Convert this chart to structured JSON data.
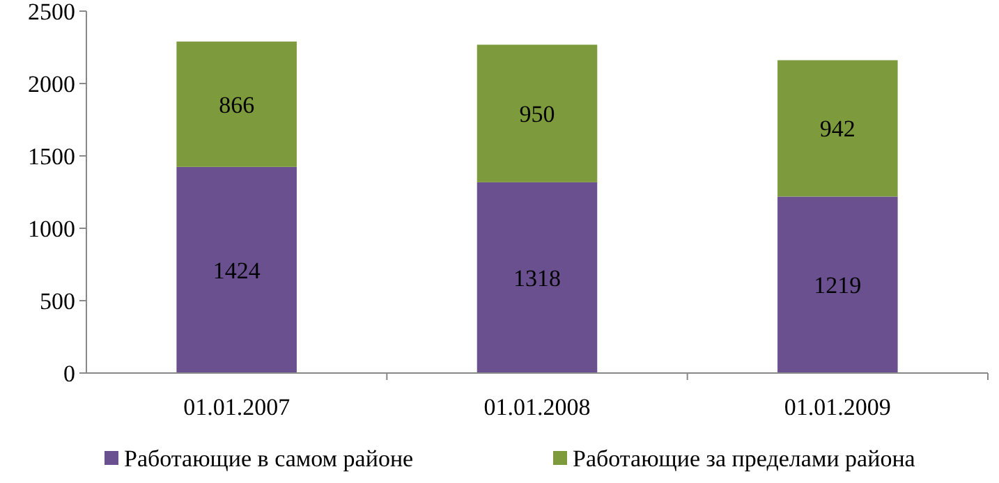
{
  "chart_data": {
    "type": "bar",
    "stacked": true,
    "categories": [
      "01.01.2007",
      "01.01.2008",
      "01.01.2009"
    ],
    "series": [
      {
        "name": "Работающие в самом районе",
        "color": "#6b5090",
        "values": [
          1424,
          1318,
          1219
        ]
      },
      {
        "name": "Работающие за пределами района",
        "color": "#7d9b3c",
        "values": [
          866,
          950,
          942
        ]
      }
    ],
    "ylim": [
      0,
      2500
    ],
    "yticks": [
      0,
      500,
      1000,
      1500,
      2000,
      2500
    ],
    "grid": false,
    "legend": "bottom",
    "data_labels": true
  }
}
